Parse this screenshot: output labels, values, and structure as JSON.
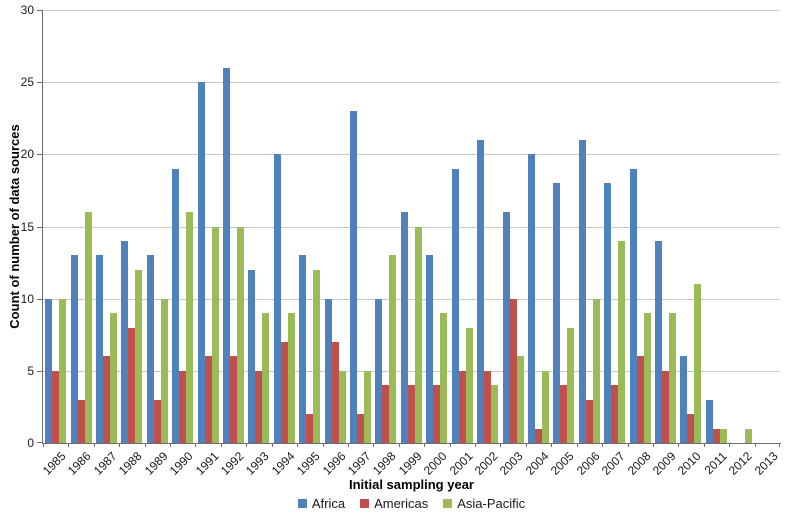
{
  "chart_data": {
    "type": "bar",
    "title": "",
    "xlabel": "Initial sampling year",
    "ylabel": "Count of number of data sources",
    "ylim": [
      0,
      30
    ],
    "yticks": [
      0,
      5,
      10,
      15,
      20,
      25,
      30
    ],
    "grid": true,
    "legend_position": "bottom-center",
    "categories": [
      "1985",
      "1986",
      "1987",
      "1988",
      "1989",
      "1990",
      "1991",
      "1992",
      "1993",
      "1994",
      "1995",
      "1996",
      "1997",
      "1998",
      "1999",
      "2000",
      "2001",
      "2002",
      "2003",
      "2004",
      "2005",
      "2006",
      "2007",
      "2008",
      "2009",
      "2010",
      "2011",
      "2012",
      "2013"
    ],
    "series": [
      {
        "name": "Africa",
        "color": "#4f81bd",
        "values": [
          10,
          13,
          13,
          14,
          13,
          19,
          25,
          26,
          12,
          20,
          13,
          10,
          23,
          10,
          16,
          13,
          19,
          21,
          16,
          20,
          18,
          21,
          18,
          19,
          14,
          6,
          3,
          0,
          0
        ]
      },
      {
        "name": "Americas",
        "color": "#c0504d",
        "values": [
          5,
          3,
          6,
          8,
          3,
          5,
          6,
          6,
          5,
          7,
          2,
          7,
          2,
          4,
          4,
          4,
          5,
          5,
          10,
          1,
          4,
          3,
          4,
          6,
          5,
          2,
          1,
          0,
          0
        ]
      },
      {
        "name": "Asia-Pacific",
        "color": "#9bbb59",
        "values": [
          10,
          16,
          9,
          12,
          10,
          16,
          15,
          15,
          9,
          9,
          12,
          5,
          5,
          13,
          15,
          9,
          8,
          4,
          6,
          5,
          8,
          10,
          14,
          9,
          9,
          11,
          1,
          1,
          0
        ]
      }
    ]
  },
  "style_colors": {
    "gridline": "#c9c9c9",
    "axis": "#6e6e6e",
    "background": "#ffffff",
    "text": "#1a1a1a"
  }
}
